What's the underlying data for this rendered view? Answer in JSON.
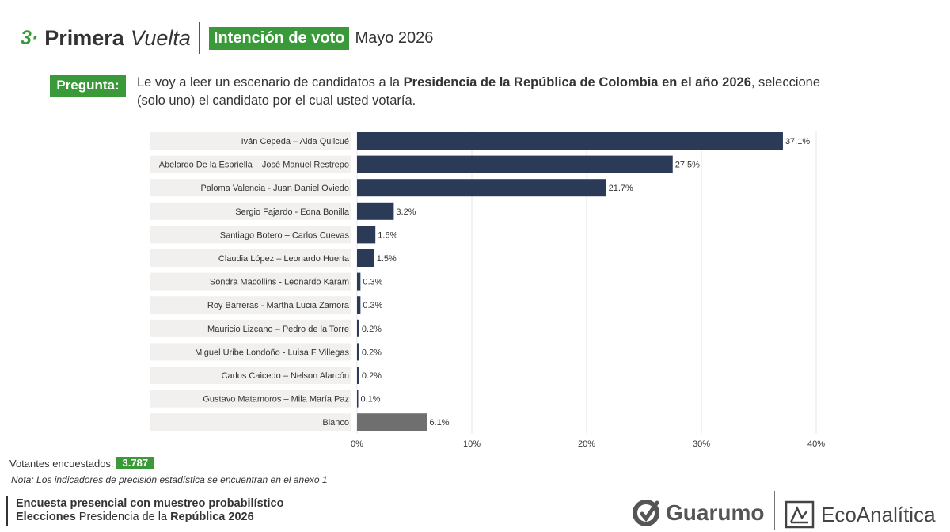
{
  "header": {
    "number": "3·",
    "title_main": "Primera",
    "title_italic": "Vuelta",
    "badge": "Intención de voto",
    "date": "Mayo 2026"
  },
  "question": {
    "label": "Pregunta:",
    "text_pre": "Le voy a leer un escenario de candidatos a la ",
    "text_bold": "Presidencia de la República de Colombia en el año 2026",
    "text_post": ", seleccione (solo uno) el candidato por el cual usted votaría."
  },
  "chart_data": {
    "type": "bar",
    "orientation": "horizontal",
    "categories": [
      "Iván Cepeda – Aida Quilcué",
      "Abelardo De la Espriella – José Manuel Restrepo",
      "Paloma Valencia - Juan Daniel Oviedo",
      "Sergio Fajardo - Edna Bonilla",
      "Santiago Botero – Carlos Cuevas",
      "Claudia López – Leonardo Huerta",
      "Sondra Macollins - Leonardo Karam",
      "Roy Barreras - Martha Lucia Zamora",
      "Mauricio Lizcano – Pedro de la Torre",
      "Miguel Uribe Londoño - Luisa F Villegas",
      "Carlos Caicedo – Nelson Alarcón",
      "Gustavo Matamoros – Mila María Paz",
      "Blanco"
    ],
    "values": [
      37.1,
      27.5,
      21.7,
      3.2,
      1.6,
      1.5,
      0.3,
      0.3,
      0.2,
      0.2,
      0.2,
      0.1,
      6.1
    ],
    "value_labels": [
      "37.1%",
      "27.5%",
      "21.7%",
      "3.2%",
      "1.6%",
      "1.5%",
      "0.3%",
      "0.3%",
      "0.2%",
      "0.2%",
      "0.2%",
      "0.1%",
      "6.1%"
    ],
    "xlim": [
      0,
      40
    ],
    "xticks": [
      0,
      10,
      20,
      30,
      40
    ],
    "xtick_labels": [
      "0%",
      "10%",
      "20%",
      "30%",
      "40%"
    ],
    "grid": true,
    "colors": {
      "bar": "#2b3a57",
      "bar_blank": "#6f6f6f",
      "label_band": "#f1f0ee",
      "gridline": "#e6e6e6"
    }
  },
  "sample": {
    "label": "Votantes encuestados:",
    "value": "3.787"
  },
  "note": "Nota: Los indicadores de precisión estadística se encuentran en el anexo 1",
  "footer": {
    "line1": "Encuesta presencial con muestreo probabilístico",
    "line2_bold": "Elecciones",
    "line2_rest": " Presidencia de la ",
    "line2_bold2": "República 2026"
  },
  "logos": {
    "guarumo": "Guarumo",
    "ecoanalitica": "EcoAnalítica"
  },
  "colors": {
    "accent_green": "#3a9a3a",
    "text": "#333333"
  }
}
